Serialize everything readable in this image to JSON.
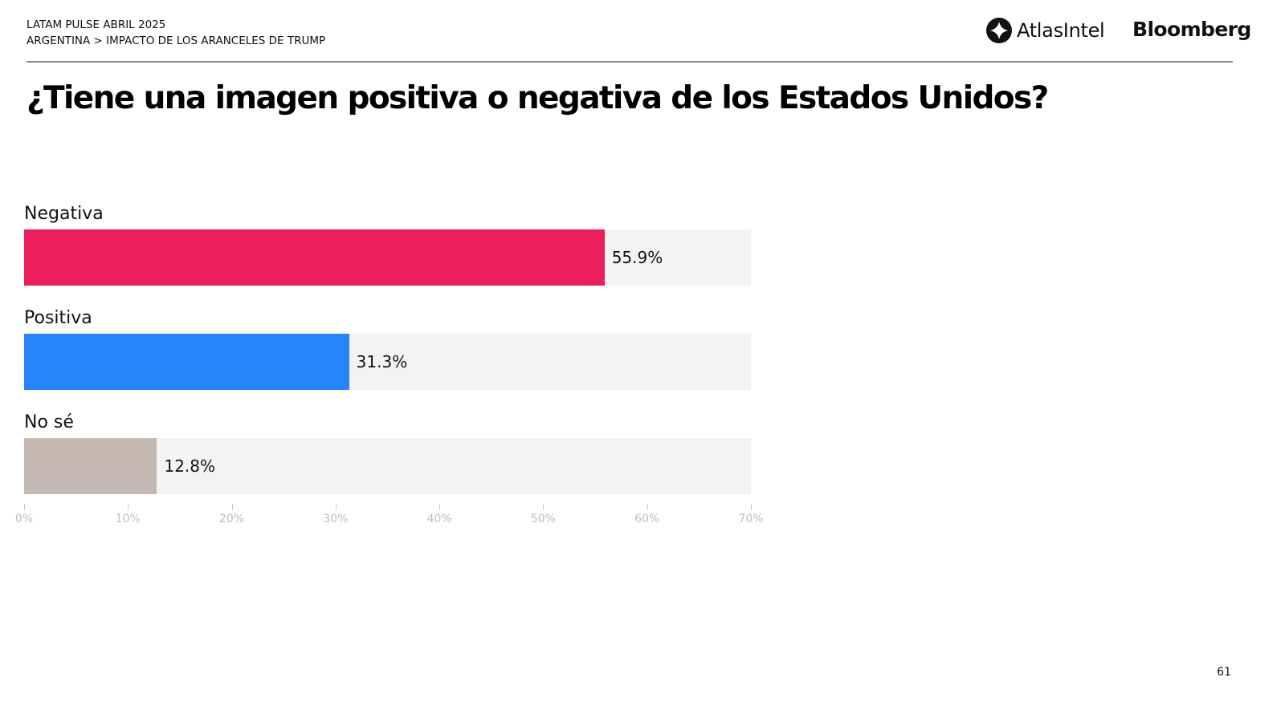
{
  "header": {
    "line1": "LATAM PULSE ABRIL 2025",
    "line2": "ARGENTINA > IMPACTO DE LOS ARANCELES DE TRUMP",
    "logo_atlas": "AtlasIntel",
    "logo_bloomberg": "Bloomberg"
  },
  "page_number": "61",
  "chart_data": {
    "type": "bar",
    "orientation": "horizontal",
    "title": "¿Tiene una imagen positiva o negativa de los Estados Unidos?",
    "categories": [
      "Negativa",
      "Positiva",
      "No sé"
    ],
    "values": [
      55.9,
      31.3,
      12.8
    ],
    "value_labels": [
      "55.9%",
      "31.3%",
      "12.8%"
    ],
    "colors": [
      "#ec1e5c",
      "#2684fc",
      "#c6b9b1"
    ],
    "track_color": "#f3f3f1",
    "xlim": [
      0,
      70
    ],
    "xticks": [
      0,
      10,
      20,
      30,
      40,
      50,
      60,
      70
    ],
    "xtick_labels": [
      "0%",
      "10%",
      "20%",
      "30%",
      "40%",
      "50%",
      "60%",
      "70%"
    ],
    "xlabel": "",
    "ylabel": "",
    "grid": false,
    "legend": "none"
  }
}
